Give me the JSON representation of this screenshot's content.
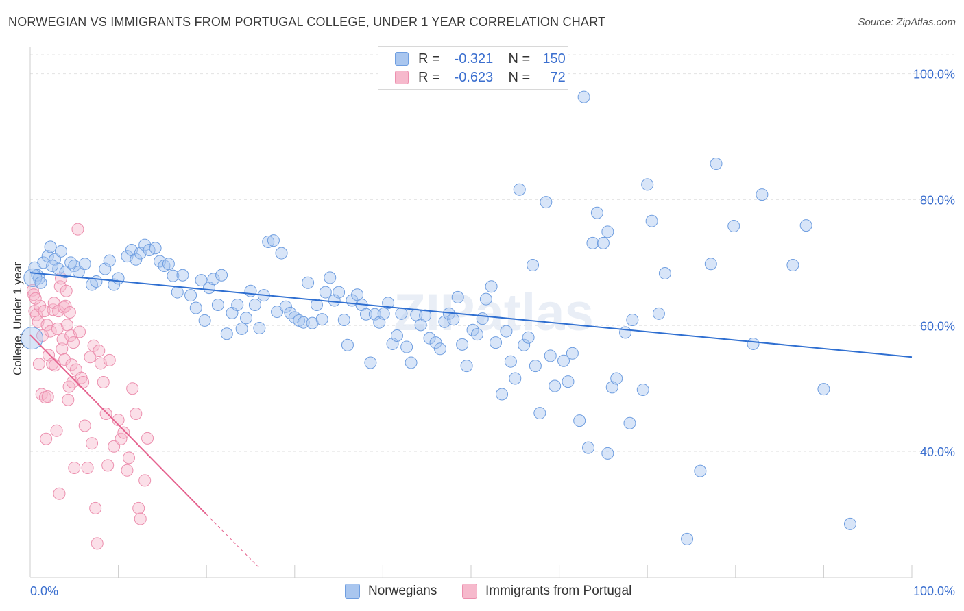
{
  "header": {
    "title": "NORWEGIAN VS IMMIGRANTS FROM PORTUGAL COLLEGE, UNDER 1 YEAR CORRELATION CHART",
    "source": "Source: ZipAtlas.com"
  },
  "legend": {
    "rows": [
      {
        "r_label": "R =",
        "r_value": "-0.321",
        "n_label": "N =",
        "n_value": "150"
      },
      {
        "r_label": "R =",
        "r_value": "-0.623",
        "n_label": "N =",
        "n_value": "72"
      }
    ]
  },
  "bottom_legend": [
    "Norwegians",
    "Immigrants from Portugal"
  ],
  "colors": {
    "blue_fill": "#a9c6ef",
    "blue_stroke": "#6f9ee0",
    "blue_line": "#2f6fd1",
    "pink_fill": "#f6b9cc",
    "pink_stroke": "#ec8fae",
    "pink_line": "#e5638f",
    "tick_label": "#3b6fcf",
    "grid": "#e3e3e3"
  },
  "chart_data": {
    "type": "scatter",
    "title": "NORWEGIAN VS IMMIGRANTS FROM PORTUGAL COLLEGE, UNDER 1 YEAR CORRELATION CHART",
    "xlabel": "",
    "ylabel": "College, Under 1 year",
    "xlim": [
      0,
      100
    ],
    "ylim": [
      20,
      103
    ],
    "x_tick_labels": [
      "0.0%",
      "100.0%"
    ],
    "y_ticks": [
      40,
      60,
      80,
      100
    ],
    "y_tick_labels": [
      "40.0%",
      "60.0%",
      "80.0%",
      "100.0%"
    ],
    "grid": true,
    "legend_placement": "top-center",
    "watermark": "ZIPatlas",
    "series": [
      {
        "name": "Norwegians",
        "r": -0.321,
        "n": 150,
        "trend": {
          "x": [
            0,
            100
          ],
          "y": [
            68.4,
            55.0
          ]
        },
        "points": [
          [
            0.5,
            69.2
          ],
          [
            0.8,
            68.0
          ],
          [
            1.0,
            67.5
          ],
          [
            1.5,
            70.0
          ],
          [
            2.0,
            71.0
          ],
          [
            2.3,
            72.5
          ],
          [
            2.8,
            70.5
          ],
          [
            3.2,
            69.0
          ],
          [
            3.5,
            71.8
          ],
          [
            4.0,
            68.5
          ],
          [
            4.6,
            70.0
          ],
          [
            5.0,
            69.5
          ],
          [
            5.5,
            68.5
          ],
          [
            6.2,
            69.8
          ],
          [
            7.0,
            66.5
          ],
          [
            7.5,
            67.0
          ],
          [
            8.5,
            69.0
          ],
          [
            9.0,
            70.3
          ],
          [
            9.5,
            66.5
          ],
          [
            10.0,
            67.5
          ],
          [
            11.0,
            71.0
          ],
          [
            11.5,
            72.0
          ],
          [
            12.0,
            70.5
          ],
          [
            12.5,
            71.5
          ],
          [
            13.0,
            72.8
          ],
          [
            13.5,
            72.0
          ],
          [
            14.2,
            72.3
          ],
          [
            14.7,
            70.2
          ],
          [
            15.2,
            69.5
          ],
          [
            15.7,
            69.8
          ],
          [
            16.2,
            67.9
          ],
          [
            16.7,
            65.3
          ],
          [
            17.3,
            68.0
          ],
          [
            18.2,
            64.8
          ],
          [
            18.8,
            62.8
          ],
          [
            19.4,
            67.2
          ],
          [
            19.8,
            60.8
          ],
          [
            20.3,
            66.0
          ],
          [
            20.8,
            67.4
          ],
          [
            21.3,
            63.3
          ],
          [
            21.7,
            68.0
          ],
          [
            22.3,
            58.7
          ],
          [
            22.9,
            62.0
          ],
          [
            23.5,
            63.3
          ],
          [
            24.0,
            59.5
          ],
          [
            24.5,
            61.2
          ],
          [
            25.0,
            65.5
          ],
          [
            25.5,
            63.3
          ],
          [
            26.0,
            59.6
          ],
          [
            26.5,
            64.8
          ],
          [
            27.0,
            73.3
          ],
          [
            27.6,
            73.5
          ],
          [
            28.0,
            62.2
          ],
          [
            28.5,
            71.5
          ],
          [
            29.0,
            63.0
          ],
          [
            29.5,
            62.0
          ],
          [
            30.0,
            61.3
          ],
          [
            30.5,
            60.8
          ],
          [
            31.0,
            60.5
          ],
          [
            31.5,
            66.8
          ],
          [
            32.0,
            60.4
          ],
          [
            32.5,
            63.3
          ],
          [
            33.1,
            61.0
          ],
          [
            33.5,
            65.3
          ],
          [
            34.0,
            67.6
          ],
          [
            34.5,
            64.0
          ],
          [
            35.0,
            65.3
          ],
          [
            35.6,
            60.9
          ],
          [
            36.0,
            56.9
          ],
          [
            36.5,
            64.0
          ],
          [
            37.1,
            64.9
          ],
          [
            37.6,
            63.3
          ],
          [
            38.1,
            61.8
          ],
          [
            38.6,
            54.1
          ],
          [
            39.1,
            61.8
          ],
          [
            39.6,
            60.5
          ],
          [
            40.1,
            61.9
          ],
          [
            40.6,
            63.6
          ],
          [
            41.1,
            57.1
          ],
          [
            41.6,
            58.4
          ],
          [
            42.1,
            61.9
          ],
          [
            42.7,
            56.6
          ],
          [
            43.2,
            54.1
          ],
          [
            43.8,
            61.7
          ],
          [
            44.3,
            60.1
          ],
          [
            44.8,
            61.6
          ],
          [
            45.3,
            58.0
          ],
          [
            46.0,
            57.3
          ],
          [
            46.5,
            56.3
          ],
          [
            47.0,
            60.6
          ],
          [
            47.5,
            61.9
          ],
          [
            48.0,
            61.0
          ],
          [
            48.5,
            64.5
          ],
          [
            49.0,
            57.0
          ],
          [
            49.5,
            53.6
          ],
          [
            50.2,
            59.3
          ],
          [
            50.7,
            58.6
          ],
          [
            51.3,
            61.1
          ],
          [
            51.7,
            64.2
          ],
          [
            52.3,
            66.2
          ],
          [
            52.8,
            57.3
          ],
          [
            53.5,
            49.1
          ],
          [
            54.0,
            59.1
          ],
          [
            54.5,
            54.3
          ],
          [
            55.0,
            51.6
          ],
          [
            55.5,
            81.6
          ],
          [
            56.0,
            56.9
          ],
          [
            56.5,
            58.1
          ],
          [
            57.0,
            69.6
          ],
          [
            57.3,
            53.6
          ],
          [
            57.8,
            46.1
          ],
          [
            58.5,
            79.6
          ],
          [
            59.0,
            55.2
          ],
          [
            59.5,
            50.4
          ],
          [
            60.5,
            54.4
          ],
          [
            61.0,
            51.1
          ],
          [
            61.5,
            55.6
          ],
          [
            62.3,
            44.9
          ],
          [
            62.8,
            96.3
          ],
          [
            63.3,
            40.6
          ],
          [
            63.8,
            73.1
          ],
          [
            64.3,
            77.9
          ],
          [
            65.0,
            73.1
          ],
          [
            65.5,
            74.9
          ],
          [
            65.5,
            39.7
          ],
          [
            66.0,
            50.2
          ],
          [
            66.5,
            51.6
          ],
          [
            67.5,
            58.9
          ],
          [
            68.0,
            44.5
          ],
          [
            68.3,
            60.9
          ],
          [
            69.5,
            49.8
          ],
          [
            70.0,
            82.4
          ],
          [
            70.5,
            76.6
          ],
          [
            71.3,
            61.9
          ],
          [
            72.0,
            68.3
          ],
          [
            74.5,
            26.1
          ],
          [
            76.0,
            36.9
          ],
          [
            77.2,
            69.8
          ],
          [
            77.8,
            85.7
          ],
          [
            79.8,
            75.8
          ],
          [
            82.0,
            57.1
          ],
          [
            83.0,
            80.8
          ],
          [
            86.5,
            69.6
          ],
          [
            88.0,
            75.9
          ],
          [
            90.0,
            49.9
          ],
          [
            93.0,
            28.5
          ],
          [
            0.3,
            67.6
          ],
          [
            0.2,
            58.0
          ],
          [
            1.2,
            66.8
          ],
          [
            2.5,
            69.5
          ]
        ]
      },
      {
        "name": "Immigrants from Portugal",
        "r": -0.623,
        "n": 72,
        "trend": {
          "x": [
            0,
            20
          ],
          "y": [
            58.5,
            30.0
          ]
        },
        "trend_dashed": {
          "x": [
            20,
            26
          ],
          "y": [
            30.0,
            21.5
          ]
        },
        "points": [
          [
            0.3,
            65.6
          ],
          [
            0.4,
            64.9
          ],
          [
            0.5,
            62.3
          ],
          [
            0.7,
            61.7
          ],
          [
            0.9,
            60.6
          ],
          [
            1.0,
            53.9
          ],
          [
            1.1,
            63.1
          ],
          [
            1.3,
            49.1
          ],
          [
            1.4,
            58.4
          ],
          [
            1.6,
            62.3
          ],
          [
            1.7,
            48.6
          ],
          [
            1.8,
            42.0
          ],
          [
            1.9,
            60.1
          ],
          [
            2.0,
            48.7
          ],
          [
            2.1,
            55.3
          ],
          [
            2.3,
            59.1
          ],
          [
            2.5,
            53.9
          ],
          [
            2.6,
            62.5
          ],
          [
            2.7,
            63.6
          ],
          [
            2.8,
            53.7
          ],
          [
            3.0,
            43.3
          ],
          [
            3.1,
            59.5
          ],
          [
            3.2,
            62.3
          ],
          [
            3.3,
            33.3
          ],
          [
            3.4,
            66.2
          ],
          [
            3.5,
            67.5
          ],
          [
            3.6,
            56.3
          ],
          [
            3.7,
            57.8
          ],
          [
            3.8,
            62.9
          ],
          [
            3.9,
            54.6
          ],
          [
            4.0,
            63.1
          ],
          [
            4.1,
            65.5
          ],
          [
            4.2,
            60.1
          ],
          [
            4.3,
            48.2
          ],
          [
            4.4,
            50.3
          ],
          [
            4.5,
            62.1
          ],
          [
            4.6,
            58.4
          ],
          [
            4.7,
            53.8
          ],
          [
            4.8,
            51.0
          ],
          [
            4.9,
            57.3
          ],
          [
            5.0,
            37.4
          ],
          [
            5.2,
            53.0
          ],
          [
            5.4,
            75.3
          ],
          [
            5.6,
            59.0
          ],
          [
            5.8,
            51.7
          ],
          [
            6.0,
            51.0
          ],
          [
            6.2,
            44.1
          ],
          [
            6.5,
            37.4
          ],
          [
            6.8,
            55.0
          ],
          [
            7.0,
            41.3
          ],
          [
            7.2,
            56.8
          ],
          [
            7.4,
            31.0
          ],
          [
            7.6,
            25.4
          ],
          [
            7.8,
            56.0
          ],
          [
            8.0,
            54.0
          ],
          [
            8.3,
            51.0
          ],
          [
            8.6,
            46.0
          ],
          [
            8.8,
            37.8
          ],
          [
            9.0,
            54.5
          ],
          [
            9.5,
            40.8
          ],
          [
            10.0,
            45.0
          ],
          [
            10.3,
            42.0
          ],
          [
            10.6,
            43.0
          ],
          [
            11.0,
            37.0
          ],
          [
            11.2,
            39.0
          ],
          [
            11.6,
            50.0
          ],
          [
            12.0,
            46.0
          ],
          [
            12.3,
            31.0
          ],
          [
            12.5,
            29.3
          ],
          [
            13.3,
            42.1
          ],
          [
            13.0,
            35.4
          ],
          [
            0.6,
            64.3
          ]
        ]
      }
    ]
  }
}
